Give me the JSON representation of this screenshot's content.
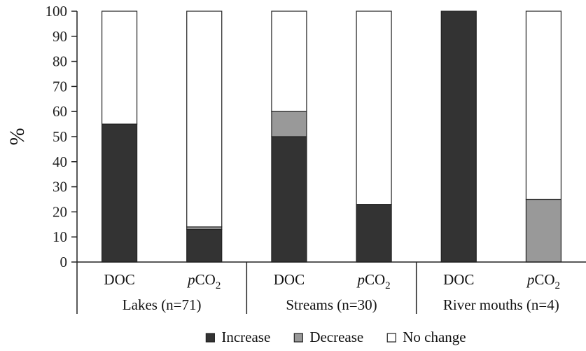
{
  "chart_data": {
    "type": "bar",
    "stacked": true,
    "ylabel": "%",
    "ylim": [
      0,
      100
    ],
    "yticks": [
      0,
      10,
      20,
      30,
      40,
      50,
      60,
      70,
      80,
      90,
      100
    ],
    "categories": [
      {
        "label": "DOC",
        "group": "Lakes (n=71)"
      },
      {
        "label": "pCO2",
        "group": "Lakes (n=71)"
      },
      {
        "label": "DOC",
        "group": "Streams (n=30)"
      },
      {
        "label": "pCO2",
        "group": "Streams (n=30)"
      },
      {
        "label": "DOC",
        "group": "River mouths (n=4)"
      },
      {
        "label": "pCO2",
        "group": "River mouths (n=4)"
      }
    ],
    "groups": [
      "Lakes (n=71)",
      "Streams (n=30)",
      "River mouths (n=4)"
    ],
    "series": [
      {
        "name": "Increase",
        "color": "#333333",
        "values": [
          55,
          13,
          50,
          23,
          100,
          0
        ]
      },
      {
        "name": "Decrease",
        "color": "#999999",
        "values": [
          0,
          1,
          10,
          0,
          0,
          25
        ]
      },
      {
        "name": "No change",
        "color": "#ffffff",
        "values": [
          45,
          86,
          40,
          77,
          0,
          75
        ]
      }
    ],
    "legend_position": "bottom-center",
    "grid": false
  }
}
